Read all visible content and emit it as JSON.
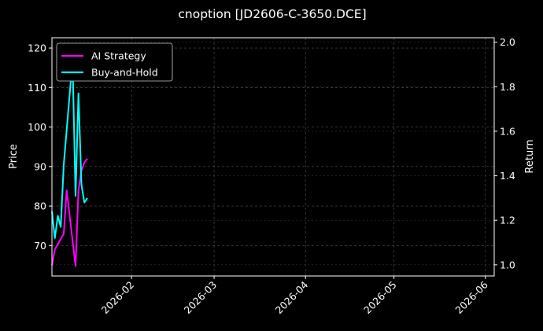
{
  "chart_data": {
    "type": "line",
    "title": "cnoption [JD2606-C-3650.DCE]",
    "xlabel": "",
    "ylabel": "Price",
    "y2label": "Return",
    "x_tick_labels": [
      "2026-02",
      "2026-03",
      "2026-04",
      "2026-05",
      "2026-06"
    ],
    "x_tick_dates": [
      "2026-02-01",
      "2026-03-01",
      "2026-04-01",
      "2026-05-01",
      "2026-06-01"
    ],
    "xlim": [
      "2026-01-05",
      "2026-06-04"
    ],
    "ylim": [
      62.3,
      122.6
    ],
    "y_ticks": [
      70,
      80,
      90,
      100,
      110,
      120
    ],
    "y2lim": [
      0.95,
      2.02
    ],
    "y2_ticks": [
      1.0,
      1.2,
      1.4,
      1.6,
      1.8,
      2.0
    ],
    "grid": true,
    "legend": "top-left",
    "background": "#000000",
    "series": [
      {
        "name": "AI Strategy",
        "axis": "left",
        "color": "#ff00ff",
        "x": [
          "2026-01-05",
          "2026-01-06",
          "2026-01-09",
          "2026-01-10",
          "2026-01-13",
          "2026-01-14",
          "2026-01-15",
          "2026-01-16",
          "2026-01-17"
        ],
        "values": [
          65.0,
          69.0,
          73.0,
          84.0,
          64.8,
          84.0,
          89.0,
          91.0,
          92.0
        ]
      },
      {
        "name": "Buy-and-Hold",
        "axis": "right",
        "color": "#00ffff",
        "x": [
          "2026-01-05",
          "2026-01-06",
          "2026-01-07",
          "2026-01-08",
          "2026-01-09",
          "2026-01-12",
          "2026-01-13",
          "2026-01-14",
          "2026-01-15",
          "2026-01-16",
          "2026-01-17"
        ],
        "values": [
          1.24,
          1.12,
          1.22,
          1.17,
          1.45,
          1.92,
          1.31,
          1.77,
          1.36,
          1.28,
          1.3
        ]
      }
    ]
  }
}
